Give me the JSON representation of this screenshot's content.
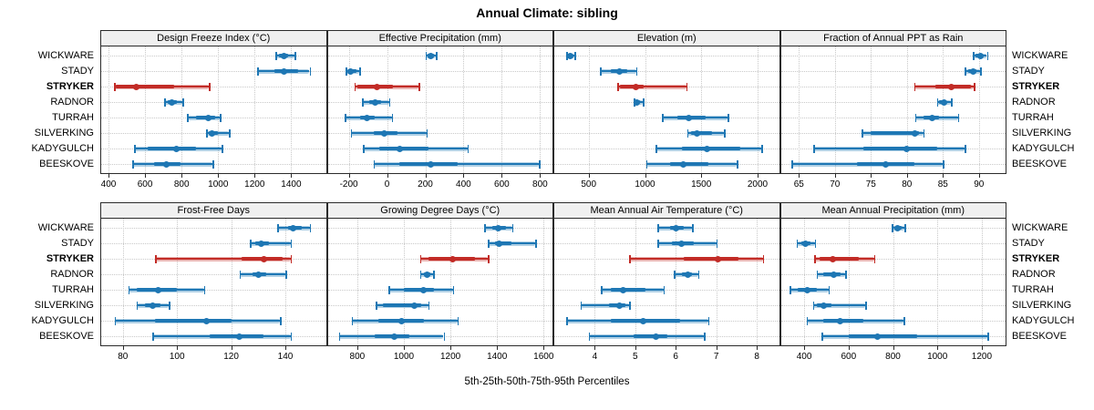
{
  "title": "Annual Climate: sibling",
  "caption": "5th-25th-50th-75th-95th Percentiles",
  "colors": {
    "series": "#1E77B4",
    "highlight": "#C22B26",
    "band_alpha": 0.35,
    "strip_bg": "#F0F0F0",
    "grid": "#C9C9C9",
    "border": "#2B2B2B"
  },
  "chart_data": {
    "type": "dot-whisker-percentile-trellis",
    "sites": [
      "WICKWARE",
      "STADY",
      "STRYKER",
      "RADNOR",
      "TURRAH",
      "SILVERKING",
      "KADYGULCH",
      "BEESKOVE"
    ],
    "highlight_site": "STRYKER",
    "percentiles": [
      "5th",
      "25th",
      "50th",
      "75th",
      "95th"
    ],
    "layout": {
      "rows": 2,
      "cols": 4,
      "legend": "none",
      "grid": "dotted"
    },
    "panels": [
      {
        "title": "Design Freeze Index (°C)",
        "xlim": [
          360,
          1590
        ],
        "ticks": [
          400,
          600,
          800,
          1000,
          1200,
          1400
        ],
        "values": [
          [
            1315,
            1335,
            1360,
            1385,
            1420
          ],
          [
            1215,
            1310,
            1360,
            1440,
            1500
          ],
          [
            430,
            440,
            550,
            760,
            950
          ],
          [
            705,
            725,
            745,
            775,
            805
          ],
          [
            830,
            880,
            945,
            985,
            1010
          ],
          [
            935,
            950,
            965,
            1000,
            1060
          ],
          [
            540,
            615,
            770,
            880,
            1020
          ],
          [
            530,
            650,
            715,
            795,
            970
          ]
        ]
      },
      {
        "title": "Effective Precipitation (mm)",
        "xlim": [
          -310,
          865
        ],
        "ticks": [
          -200,
          0,
          200,
          400,
          600,
          800
        ],
        "values": [
          [
            200,
            213,
            230,
            245,
            255
          ],
          [
            -215,
            -198,
            -190,
            -160,
            -145
          ],
          [
            -170,
            -155,
            -55,
            30,
            165
          ],
          [
            -130,
            -95,
            -63,
            -32,
            10
          ],
          [
            -220,
            -140,
            -105,
            -63,
            25
          ],
          [
            -190,
            -70,
            -15,
            55,
            205
          ],
          [
            -125,
            -40,
            65,
            215,
            420
          ],
          [
            -70,
            65,
            230,
            370,
            795
          ]
        ]
      },
      {
        "title": "Elevation (m)",
        "xlim": [
          195,
          2190
        ],
        "ticks": [
          500,
          1000,
          1500,
          2000
        ],
        "values": [
          [
            300,
            315,
            335,
            350,
            375
          ],
          [
            600,
            695,
            770,
            845,
            920
          ],
          [
            755,
            775,
            920,
            990,
            1365
          ],
          [
            900,
            915,
            930,
            955,
            980
          ],
          [
            1150,
            1285,
            1385,
            1540,
            1735
          ],
          [
            1375,
            1405,
            1460,
            1595,
            1700
          ],
          [
            1095,
            1325,
            1550,
            1850,
            2035
          ],
          [
            1010,
            1220,
            1340,
            1565,
            1815
          ]
        ]
      },
      {
        "title": "Fraction of Annual PPT as Rain",
        "xlim": [
          62.5,
          93.7
        ],
        "ticks": [
          65,
          70,
          75,
          80,
          85,
          90
        ],
        "values": [
          [
            89.2,
            89.5,
            90.2,
            90.5,
            91.1
          ],
          [
            88.0,
            88.5,
            89.2,
            89.7,
            90.2
          ],
          [
            81.0,
            84.0,
            86.1,
            88.9,
            89.3
          ],
          [
            84.2,
            84.5,
            85.1,
            85.5,
            86.1
          ],
          [
            81.1,
            82.3,
            83.5,
            84.5,
            87.1
          ],
          [
            73.7,
            75.0,
            81.1,
            81.7,
            82.3
          ],
          [
            67.0,
            74.0,
            80.0,
            84.2,
            88.0
          ],
          [
            64.0,
            73.0,
            77.0,
            81.0,
            85.0
          ]
        ]
      },
      {
        "title": "Frost-Free Days",
        "xlim": [
          72,
          155
        ],
        "ticks": [
          80,
          100,
          120,
          140
        ],
        "values": [
          [
            137,
            141,
            143,
            146,
            149
          ],
          [
            127,
            129,
            131,
            134,
            142
          ],
          [
            92,
            124,
            132,
            139,
            142
          ],
          [
            123,
            128,
            130,
            133,
            140
          ],
          [
            82,
            85,
            93,
            100,
            110
          ],
          [
            85,
            88,
            91,
            94,
            97
          ],
          [
            77,
            92,
            111,
            120,
            138
          ],
          [
            91,
            112,
            123,
            132,
            142
          ]
        ]
      },
      {
        "title": "Growing Degree Days (°C)",
        "xlim": [
          673,
          1638
        ],
        "ticks": [
          800,
          1000,
          1200,
          1400,
          1600
        ],
        "values": [
          [
            1345,
            1380,
            1405,
            1440,
            1465
          ],
          [
            1360,
            1390,
            1410,
            1460,
            1565
          ],
          [
            1070,
            1105,
            1210,
            1305,
            1360
          ],
          [
            1070,
            1085,
            1100,
            1112,
            1125
          ],
          [
            935,
            1000,
            1085,
            1130,
            1210
          ],
          [
            880,
            910,
            1045,
            1075,
            1105
          ],
          [
            775,
            890,
            990,
            1085,
            1230
          ],
          [
            720,
            875,
            960,
            1025,
            1170
          ]
        ]
      },
      {
        "title": "Mean Annual Air Temperature (°C)",
        "xlim": [
          3.0,
          8.55
        ],
        "ticks": [
          4,
          5,
          6,
          7,
          8
        ],
        "values": [
          [
            5.55,
            5.85,
            6.0,
            6.2,
            6.4
          ],
          [
            5.55,
            5.9,
            6.15,
            6.45,
            7.0
          ],
          [
            4.85,
            6.2,
            7.05,
            7.55,
            8.15
          ],
          [
            5.95,
            6.15,
            6.3,
            6.4,
            6.55
          ],
          [
            4.15,
            4.4,
            4.7,
            5.25,
            5.7
          ],
          [
            3.65,
            4.35,
            4.6,
            4.75,
            4.85
          ],
          [
            3.3,
            4.4,
            5.2,
            6.1,
            6.8
          ],
          [
            3.85,
            4.95,
            5.5,
            5.8,
            6.7
          ]
        ]
      },
      {
        "title": "Mean Annual Precipitation (mm)",
        "xlim": [
          295,
          1307
        ],
        "ticks": [
          400,
          600,
          800,
          1000,
          1200
        ],
        "values": [
          [
            795,
            808,
            822,
            840,
            852
          ],
          [
            365,
            388,
            407,
            428,
            448
          ],
          [
            445,
            470,
            530,
            645,
            715
          ],
          [
            455,
            485,
            533,
            565,
            585
          ],
          [
            335,
            370,
            413,
            458,
            510
          ],
          [
            440,
            458,
            488,
            525,
            675
          ],
          [
            410,
            485,
            560,
            668,
            848
          ],
          [
            478,
            600,
            730,
            908,
            1225
          ]
        ]
      }
    ]
  }
}
